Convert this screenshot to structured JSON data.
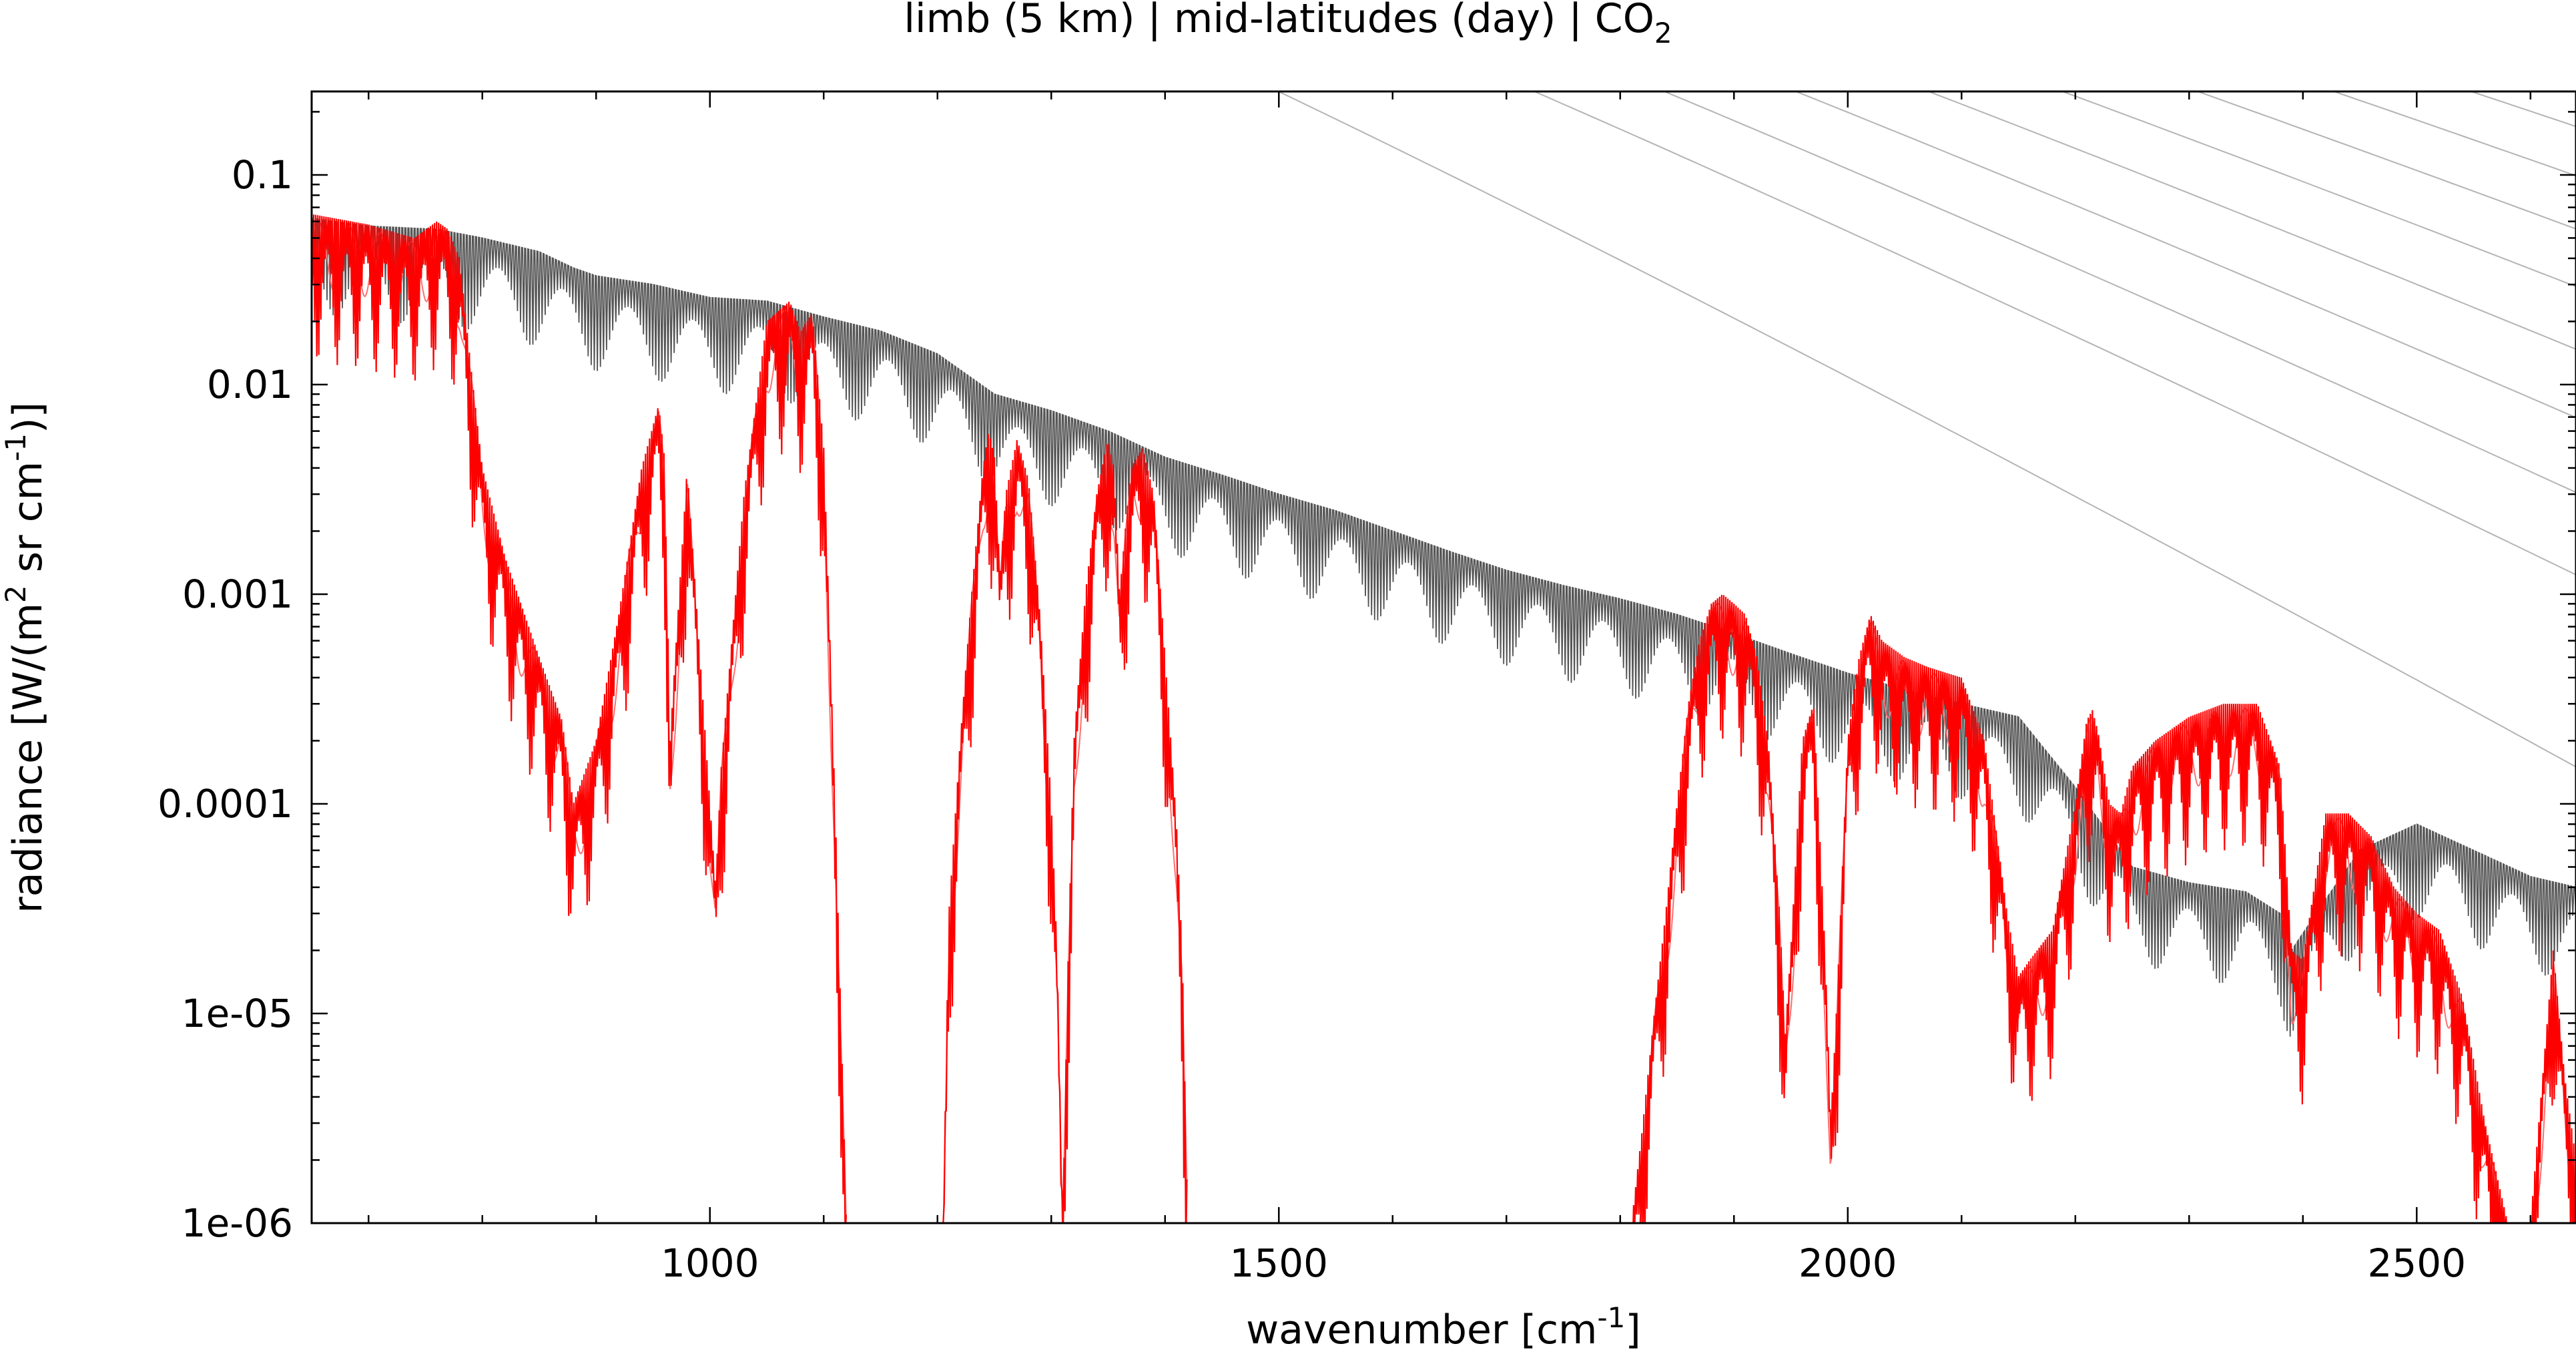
{
  "chart_data": {
    "type": "line",
    "title": {
      "prefix": "limb (5 km) | mid-latitudes (day) | CO",
      "subscript": "2"
    },
    "xlabel": {
      "prefix": "wavenumber [cm",
      "superscript": "-1",
      "suffix": "]"
    },
    "ylabel": {
      "prefix": "radiance [W/(m",
      "sup1": "2",
      "middle": " sr cm",
      "sup2": "-1",
      "suffix": ")]"
    },
    "xlim": [
      650,
      2640
    ],
    "ylim": [
      1e-06,
      0.25
    ],
    "yscale": "log",
    "x_ticks": [
      {
        "value": 1000,
        "label": "1000"
      },
      {
        "value": 1500,
        "label": "1500"
      },
      {
        "value": 2000,
        "label": "2000"
      },
      {
        "value": 2500,
        "label": "2500"
      }
    ],
    "y_ticks": [
      {
        "value": 0.1,
        "label": "0.1"
      },
      {
        "value": 0.01,
        "label": "0.01"
      },
      {
        "value": 0.001,
        "label": "0.001"
      },
      {
        "value": 0.0001,
        "label": "0.0001"
      },
      {
        "value": 1e-05,
        "label": "1e-05"
      },
      {
        "value": 1e-06,
        "label": "1e-06"
      }
    ],
    "colors": {
      "co2_spectrum": "#ff0000",
      "co2_light": "#ff7070",
      "reference_spectrum": "#555555",
      "planck_curves": "#b4b4b4"
    },
    "planck_temperatures_k": [
      180,
      200,
      210,
      220,
      230,
      240,
      250,
      260,
      270,
      280,
      290
    ],
    "series": [
      {
        "style": "reference",
        "x": [
          650,
          700,
          760,
          800,
          850,
          880,
          900,
          950,
          1000,
          1050,
          1100,
          1150,
          1200,
          1250,
          1300,
          1350,
          1400,
          1450,
          1500,
          1550,
          1600,
          1650,
          1700,
          1750,
          1800,
          1850,
          1900,
          1950,
          2000,
          2050,
          2100,
          2150,
          2200,
          2250,
          2300,
          2350,
          2380,
          2390,
          2420,
          2450,
          2500,
          2550,
          2600,
          2640
        ],
        "y": [
          0.062,
          0.057,
          0.055,
          0.05,
          0.043,
          0.036,
          0.033,
          0.03,
          0.026,
          0.025,
          0.021,
          0.018,
          0.014,
          0.009,
          0.0075,
          0.006,
          0.0045,
          0.0037,
          0.003,
          0.0025,
          0.002,
          0.0016,
          0.0013,
          0.0011,
          0.00095,
          0.0008,
          0.00065,
          0.00052,
          0.00042,
          0.00035,
          0.0003,
          0.00026,
          0.00012,
          5e-05,
          4.2e-05,
          3.8e-05,
          3e-05,
          2e-05,
          3.5e-05,
          6e-05,
          8e-05,
          6e-05,
          4.5e-05,
          4e-05
        ]
      },
      {
        "style": "co2",
        "x": [
          650,
          700,
          740,
          760,
          770,
          780,
          790,
          800,
          820,
          850,
          870,
          880,
          900,
          920,
          940,
          955,
          960,
          965,
          980,
          1000,
          1005,
          1010,
          1030,
          1050,
          1070,
          1080,
          1090,
          1100,
          1110,
          1120
        ],
        "y": [
          0.065,
          0.058,
          0.05,
          0.06,
          0.055,
          0.04,
          0.012,
          0.004,
          0.0015,
          0.0005,
          0.00025,
          0.0001,
          0.0002,
          0.0008,
          0.004,
          0.008,
          0.0045,
          0.0002,
          0.004,
          0.0001,
          4e-05,
          0.00015,
          0.003,
          0.02,
          0.025,
          0.018,
          0.022,
          0.005,
          0.0001,
          1e-06
        ]
      },
      {
        "style": "co2",
        "x": [
          1205,
          1210,
          1220,
          1230,
          1240,
          1245,
          1250,
          1255,
          1260,
          1270,
          1280,
          1290,
          1300,
          1305,
          1310,
          1315,
          1320,
          1330,
          1340,
          1350,
          1355,
          1360,
          1370,
          1380,
          1390,
          1400,
          1410,
          1415,
          1420
        ],
        "y": [
          1e-06,
          3e-05,
          0.0002,
          0.001,
          0.004,
          0.006,
          0.0045,
          0.0012,
          0.003,
          0.0055,
          0.0035,
          0.0008,
          0.0001,
          2e-05,
          1e-06,
          2e-05,
          0.0002,
          0.001,
          0.003,
          0.0055,
          0.004,
          0.001,
          0.004,
          0.005,
          0.003,
          0.0005,
          8e-05,
          2e-05,
          1e-06
        ]
      },
      {
        "style": "co2",
        "x": [
          1810,
          1820,
          1830,
          1840,
          1850,
          1860,
          1870,
          1880,
          1890,
          1900,
          1910,
          1920,
          1930,
          1940,
          1945,
          1950,
          1960,
          1970,
          1980,
          1985,
          1990,
          2000,
          2010,
          2020,
          2030,
          2050,
          2070,
          2100,
          2120,
          2140,
          2150,
          2160,
          2180,
          2200,
          2210,
          2215,
          2220,
          2230,
          2240,
          2250,
          2270,
          2300,
          2330,
          2360,
          2380,
          2390,
          2400,
          2410,
          2420,
          2440,
          2460,
          2480,
          2500,
          2520,
          2540,
          2560,
          2580,
          2600,
          2620,
          2630,
          2640
        ],
        "y": [
          1e-06,
          3e-06,
          1e-05,
          3e-05,
          0.0001,
          0.0003,
          0.0006,
          0.0009,
          0.001,
          0.0009,
          0.0008,
          0.0005,
          0.0002,
          3e-05,
          8e-06,
          2e-05,
          0.0002,
          0.0003,
          2e-05,
          3e-06,
          1e-05,
          0.0002,
          0.0005,
          0.0008,
          0.0006,
          0.0005,
          0.00045,
          0.0004,
          0.0002,
          3e-05,
          1.5e-05,
          1.8e-05,
          2.5e-05,
          0.0001,
          0.00025,
          0.00028,
          0.00022,
          0.0001,
          9e-05,
          0.00015,
          0.0002,
          0.00026,
          0.0003,
          0.0003,
          0.00015,
          2e-05,
          1.8e-05,
          4e-05,
          9e-05,
          9e-05,
          7e-05,
          4e-05,
          3e-05,
          2.5e-05,
          1.2e-05,
          3e-06,
          1e-06,
          1e-06,
          2e-05,
          5e-06,
          2e-06
        ]
      }
    ]
  }
}
